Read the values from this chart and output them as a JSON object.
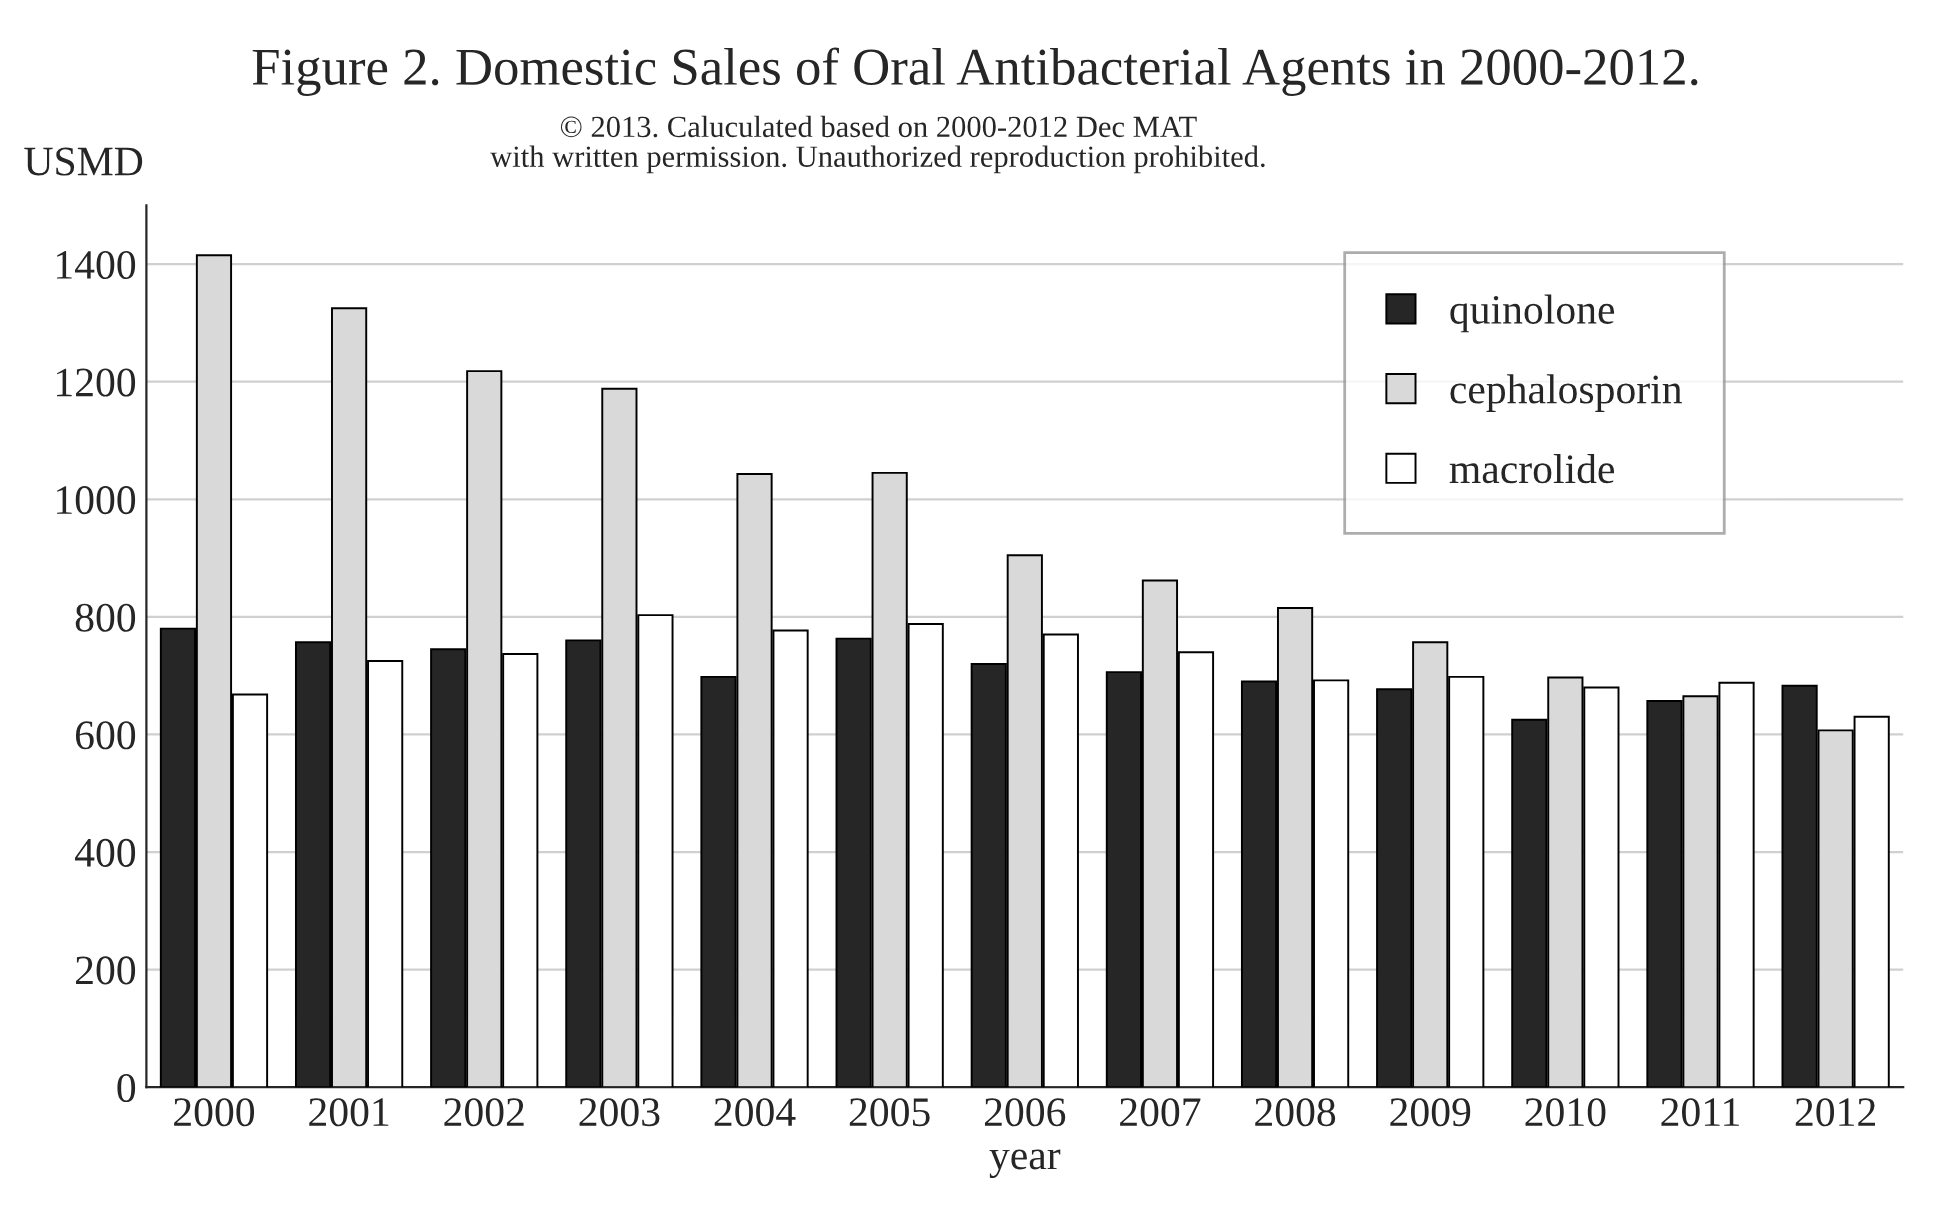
{
  "chart_data": {
    "type": "bar",
    "title": "Figure 2. Domestic Sales of Oral Antibacterial Agents in 2000-2012.",
    "annotations": [
      "© 2013. Caluculated based on 2000-2012 Dec MAT\nwith written permission. Unauthorized reproduction prohibited."
    ],
    "ylabel": "USMD",
    "xlabel": "year",
    "categories": [
      "2000",
      "2001",
      "2002",
      "2003",
      "2004",
      "2005",
      "2006",
      "2007",
      "2008",
      "2009",
      "2010",
      "2011",
      "2012"
    ],
    "series": [
      {
        "name": "quinolone",
        "color": "#262626",
        "values": [
          780,
          757,
          745,
          760,
          698,
          763,
          720,
          706,
          690,
          677,
          625,
          657,
          683
        ]
      },
      {
        "name": "cephalosporin",
        "color": "#d9d9d9",
        "values": [
          1415,
          1325,
          1218,
          1188,
          1043,
          1045,
          905,
          862,
          815,
          757,
          697,
          665,
          607
        ]
      },
      {
        "name": "macrolide",
        "color": "#ffffff",
        "values": [
          668,
          725,
          737,
          803,
          777,
          788,
          770,
          740,
          692,
          698,
          680,
          688,
          630
        ]
      }
    ],
    "ylim": [
      0,
      1500
    ],
    "yticks": [
      0,
      200,
      400,
      600,
      800,
      1000,
      1200,
      1400
    ],
    "grid": "y",
    "legend": "top right"
  }
}
